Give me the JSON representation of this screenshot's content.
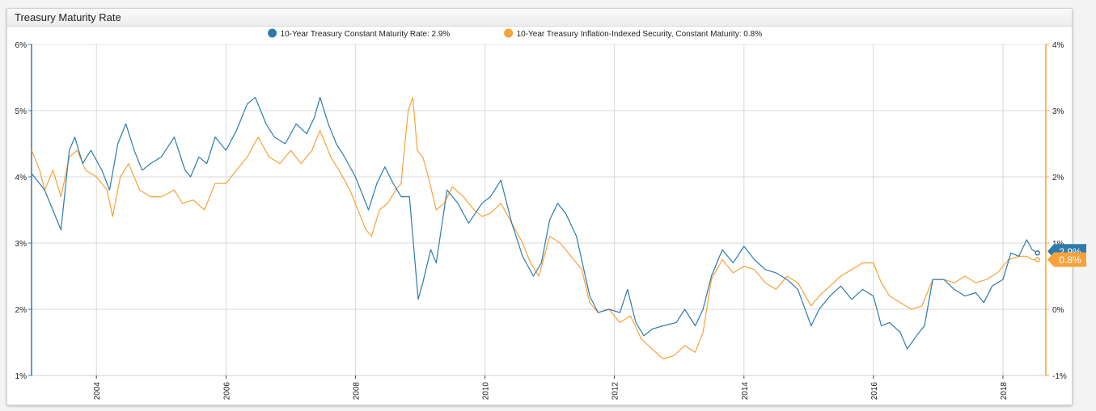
{
  "panel": {
    "title": "Treasury Maturity Rate"
  },
  "chart_data": {
    "type": "line",
    "x_range": [
      "2002-12-31",
      "2018-08-31"
    ],
    "x_ticks": [
      "2004",
      "2006",
      "2008",
      "2010",
      "2012",
      "2014",
      "2016",
      "2018"
    ],
    "y_left": {
      "ticks": [
        "1%",
        "2%",
        "3%",
        "4%",
        "5%",
        "6%"
      ],
      "range": [
        1,
        6
      ]
    },
    "y_right": {
      "ticks": [
        "-1%",
        "0%",
        "1%",
        "2%",
        "3%",
        "4%"
      ],
      "range": [
        -1,
        4
      ]
    },
    "grid": true,
    "legend_position": "top-center",
    "series": [
      {
        "name": "10-Year Treasury Constant Maturity Rate",
        "legend_label": "10-Year Treasury Constant Maturity Rate: 2.9%",
        "axis": "left",
        "color": "#2e7bab",
        "current_value_label": "2.9%",
        "points": [
          [
            "2003-01-01",
            4.05
          ],
          [
            "2003-03-15",
            3.8
          ],
          [
            "2003-06-15",
            3.2
          ],
          [
            "2003-08-01",
            4.4
          ],
          [
            "2003-09-01",
            4.6
          ],
          [
            "2003-10-15",
            4.2
          ],
          [
            "2003-12-01",
            4.4
          ],
          [
            "2004-02-01",
            4.1
          ],
          [
            "2004-03-15",
            3.8
          ],
          [
            "2004-05-01",
            4.5
          ],
          [
            "2004-06-15",
            4.8
          ],
          [
            "2004-08-01",
            4.4
          ],
          [
            "2004-09-15",
            4.1
          ],
          [
            "2004-11-01",
            4.2
          ],
          [
            "2005-01-01",
            4.3
          ],
          [
            "2005-03-15",
            4.6
          ],
          [
            "2005-05-15",
            4.1
          ],
          [
            "2005-06-15",
            4.0
          ],
          [
            "2005-08-01",
            4.3
          ],
          [
            "2005-09-15",
            4.2
          ],
          [
            "2005-11-01",
            4.6
          ],
          [
            "2006-01-01",
            4.4
          ],
          [
            "2006-03-01",
            4.7
          ],
          [
            "2006-05-01",
            5.1
          ],
          [
            "2006-06-15",
            5.2
          ],
          [
            "2006-08-15",
            4.8
          ],
          [
            "2006-10-01",
            4.6
          ],
          [
            "2006-12-01",
            4.5
          ],
          [
            "2007-02-01",
            4.8
          ],
          [
            "2007-04-01",
            4.65
          ],
          [
            "2007-05-15",
            4.9
          ],
          [
            "2007-06-15",
            5.2
          ],
          [
            "2007-08-01",
            4.8
          ],
          [
            "2007-09-15",
            4.5
          ],
          [
            "2007-11-01",
            4.3
          ],
          [
            "2008-01-01",
            4.0
          ],
          [
            "2008-03-15",
            3.5
          ],
          [
            "2008-05-01",
            3.9
          ],
          [
            "2008-06-15",
            4.15
          ],
          [
            "2008-08-01",
            3.9
          ],
          [
            "2008-09-15",
            3.7
          ],
          [
            "2008-11-01",
            3.7
          ],
          [
            "2008-12-20",
            2.15
          ],
          [
            "2009-01-15",
            2.4
          ],
          [
            "2009-03-01",
            2.9
          ],
          [
            "2009-04-01",
            2.7
          ],
          [
            "2009-06-01",
            3.8
          ],
          [
            "2009-08-01",
            3.6
          ],
          [
            "2009-10-01",
            3.3
          ],
          [
            "2009-12-15",
            3.6
          ],
          [
            "2010-02-01",
            3.7
          ],
          [
            "2010-04-01",
            3.95
          ],
          [
            "2010-06-01",
            3.3
          ],
          [
            "2010-08-01",
            2.8
          ],
          [
            "2010-10-01",
            2.5
          ],
          [
            "2010-11-15",
            2.7
          ],
          [
            "2011-01-01",
            3.35
          ],
          [
            "2011-02-15",
            3.6
          ],
          [
            "2011-04-01",
            3.45
          ],
          [
            "2011-06-01",
            3.1
          ],
          [
            "2011-08-15",
            2.2
          ],
          [
            "2011-10-01",
            1.95
          ],
          [
            "2011-12-01",
            2.0
          ],
          [
            "2012-02-01",
            1.95
          ],
          [
            "2012-03-15",
            2.3
          ],
          [
            "2012-05-01",
            1.8
          ],
          [
            "2012-06-15",
            1.6
          ],
          [
            "2012-08-01",
            1.7
          ],
          [
            "2012-10-01",
            1.75
          ],
          [
            "2012-12-15",
            1.8
          ],
          [
            "2013-02-01",
            2.0
          ],
          [
            "2013-04-01",
            1.75
          ],
          [
            "2013-05-15",
            2.0
          ],
          [
            "2013-07-01",
            2.5
          ],
          [
            "2013-09-01",
            2.9
          ],
          [
            "2013-11-01",
            2.7
          ],
          [
            "2014-01-01",
            2.95
          ],
          [
            "2014-03-01",
            2.75
          ],
          [
            "2014-05-01",
            2.6
          ],
          [
            "2014-07-01",
            2.55
          ],
          [
            "2014-09-01",
            2.45
          ],
          [
            "2014-11-01",
            2.3
          ],
          [
            "2015-01-15",
            1.75
          ],
          [
            "2015-03-01",
            2.0
          ],
          [
            "2015-05-01",
            2.2
          ],
          [
            "2015-07-01",
            2.35
          ],
          [
            "2015-09-01",
            2.15
          ],
          [
            "2015-11-01",
            2.3
          ],
          [
            "2016-01-01",
            2.2
          ],
          [
            "2016-02-15",
            1.75
          ],
          [
            "2016-04-01",
            1.8
          ],
          [
            "2016-06-01",
            1.65
          ],
          [
            "2016-07-10",
            1.4
          ],
          [
            "2016-09-01",
            1.6
          ],
          [
            "2016-10-15",
            1.75
          ],
          [
            "2016-12-01",
            2.45
          ],
          [
            "2017-02-01",
            2.45
          ],
          [
            "2017-04-01",
            2.3
          ],
          [
            "2017-06-01",
            2.2
          ],
          [
            "2017-08-01",
            2.25
          ],
          [
            "2017-09-15",
            2.1
          ],
          [
            "2017-11-01",
            2.35
          ],
          [
            "2018-01-01",
            2.45
          ],
          [
            "2018-02-15",
            2.85
          ],
          [
            "2018-04-01",
            2.8
          ],
          [
            "2018-05-15",
            3.05
          ],
          [
            "2018-06-15",
            2.9
          ],
          [
            "2018-07-15",
            2.85
          ]
        ]
      },
      {
        "name": "10-Year Treasury Inflation-Indexed Security, Constant Maturity",
        "legend_label": "10-Year Treasury Inflation-Indexed Security, Constant Maturity: 0.8%",
        "axis": "right",
        "color": "#f7a23a",
        "current_value_label": "0.8%",
        "points": [
          [
            "2003-01-01",
            2.4
          ],
          [
            "2003-02-15",
            2.1
          ],
          [
            "2003-03-15",
            1.8
          ],
          [
            "2003-05-01",
            2.1
          ],
          [
            "2003-06-15",
            1.7
          ],
          [
            "2003-08-01",
            2.3
          ],
          [
            "2003-09-15",
            2.4
          ],
          [
            "2003-11-01",
            2.1
          ],
          [
            "2004-01-01",
            2.0
          ],
          [
            "2004-03-01",
            1.8
          ],
          [
            "2004-04-01",
            1.4
          ],
          [
            "2004-05-15",
            2.0
          ],
          [
            "2004-07-01",
            2.2
          ],
          [
            "2004-09-01",
            1.8
          ],
          [
            "2004-11-01",
            1.7
          ],
          [
            "2005-01-01",
            1.7
          ],
          [
            "2005-03-15",
            1.8
          ],
          [
            "2005-05-01",
            1.6
          ],
          [
            "2005-07-01",
            1.65
          ],
          [
            "2005-09-01",
            1.5
          ],
          [
            "2005-11-01",
            1.9
          ],
          [
            "2006-01-01",
            1.9
          ],
          [
            "2006-03-01",
            2.1
          ],
          [
            "2006-05-01",
            2.3
          ],
          [
            "2006-07-01",
            2.6
          ],
          [
            "2006-09-01",
            2.3
          ],
          [
            "2006-11-01",
            2.2
          ],
          [
            "2007-01-01",
            2.4
          ],
          [
            "2007-03-01",
            2.2
          ],
          [
            "2007-05-01",
            2.4
          ],
          [
            "2007-06-15",
            2.7
          ],
          [
            "2007-08-15",
            2.3
          ],
          [
            "2007-10-01",
            2.1
          ],
          [
            "2007-12-01",
            1.8
          ],
          [
            "2008-01-15",
            1.5
          ],
          [
            "2008-03-01",
            1.2
          ],
          [
            "2008-04-01",
            1.1
          ],
          [
            "2008-05-15",
            1.5
          ],
          [
            "2008-07-01",
            1.6
          ],
          [
            "2008-08-15",
            1.8
          ],
          [
            "2008-09-15",
            1.9
          ],
          [
            "2008-10-10",
            2.6
          ],
          [
            "2008-10-25",
            3.0
          ],
          [
            "2008-11-20",
            3.2
          ],
          [
            "2008-12-15",
            2.4
          ],
          [
            "2009-01-15",
            2.3
          ],
          [
            "2009-02-15",
            2.0
          ],
          [
            "2009-04-01",
            1.5
          ],
          [
            "2009-05-15",
            1.6
          ],
          [
            "2009-07-01",
            1.85
          ],
          [
            "2009-09-01",
            1.7
          ],
          [
            "2009-11-01",
            1.5
          ],
          [
            "2009-12-15",
            1.4
          ],
          [
            "2010-02-01",
            1.45
          ],
          [
            "2010-04-01",
            1.6
          ],
          [
            "2010-06-01",
            1.3
          ],
          [
            "2010-08-01",
            1.0
          ],
          [
            "2010-09-15",
            0.7
          ],
          [
            "2010-11-01",
            0.5
          ],
          [
            "2011-01-01",
            1.1
          ],
          [
            "2011-03-01",
            1.0
          ],
          [
            "2011-05-01",
            0.8
          ],
          [
            "2011-07-01",
            0.6
          ],
          [
            "2011-08-15",
            0.1
          ],
          [
            "2011-10-01",
            -0.05
          ],
          [
            "2011-12-01",
            0.0
          ],
          [
            "2012-02-01",
            -0.2
          ],
          [
            "2012-04-01",
            -0.1
          ],
          [
            "2012-06-01",
            -0.45
          ],
          [
            "2012-08-01",
            -0.6
          ],
          [
            "2012-10-01",
            -0.75
          ],
          [
            "2012-12-01",
            -0.7
          ],
          [
            "2013-02-01",
            -0.55
          ],
          [
            "2013-04-01",
            -0.65
          ],
          [
            "2013-05-15",
            -0.35
          ],
          [
            "2013-07-01",
            0.45
          ],
          [
            "2013-09-01",
            0.75
          ],
          [
            "2013-11-01",
            0.55
          ],
          [
            "2014-01-01",
            0.65
          ],
          [
            "2014-03-01",
            0.6
          ],
          [
            "2014-05-01",
            0.4
          ],
          [
            "2014-07-01",
            0.3
          ],
          [
            "2014-09-01",
            0.5
          ],
          [
            "2014-11-01",
            0.4
          ],
          [
            "2015-01-15",
            0.05
          ],
          [
            "2015-03-01",
            0.2
          ],
          [
            "2015-05-01",
            0.35
          ],
          [
            "2015-07-01",
            0.5
          ],
          [
            "2015-09-01",
            0.6
          ],
          [
            "2015-11-01",
            0.7
          ],
          [
            "2016-01-01",
            0.7
          ],
          [
            "2016-02-15",
            0.4
          ],
          [
            "2016-04-01",
            0.2
          ],
          [
            "2016-06-01",
            0.1
          ],
          [
            "2016-08-01",
            0.0
          ],
          [
            "2016-10-01",
            0.05
          ],
          [
            "2016-12-01",
            0.45
          ],
          [
            "2017-02-01",
            0.45
          ],
          [
            "2017-04-01",
            0.4
          ],
          [
            "2017-06-01",
            0.5
          ],
          [
            "2017-08-01",
            0.4
          ],
          [
            "2017-10-01",
            0.45
          ],
          [
            "2017-12-01",
            0.55
          ],
          [
            "2018-02-01",
            0.75
          ],
          [
            "2018-04-01",
            0.8
          ],
          [
            "2018-05-15",
            0.8
          ],
          [
            "2018-06-15",
            0.75
          ],
          [
            "2018-07-15",
            0.75
          ]
        ]
      }
    ]
  }
}
